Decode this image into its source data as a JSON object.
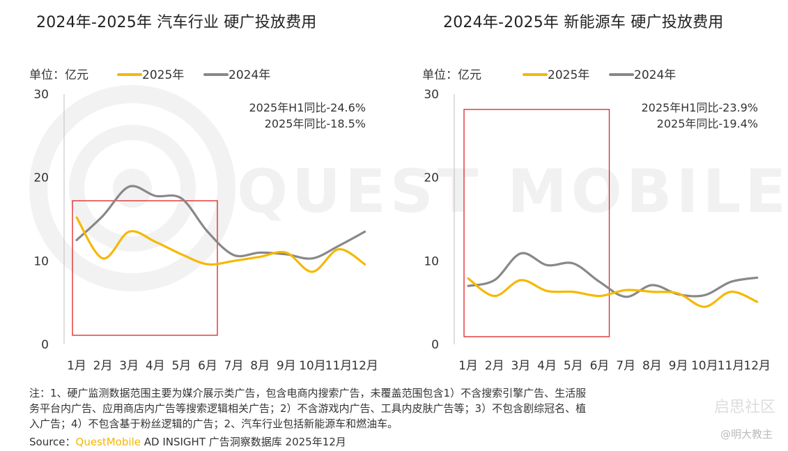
{
  "chart_data": [
    {
      "type": "line",
      "title": "2024年-2025年 汽车行业 硬广投放费用",
      "unit_label": "单位：亿元",
      "categories": [
        "1月",
        "2月",
        "3月",
        "4月",
        "5月",
        "6月",
        "7月",
        "8月",
        "9月",
        "10月",
        "11月",
        "12月"
      ],
      "series": [
        {
          "name": "2025年",
          "color": "#f5b800",
          "values": [
            15.2,
            10.3,
            13.5,
            12.3,
            10.8,
            9.6,
            10.0,
            10.5,
            11.0,
            8.7,
            11.4,
            9.6
          ]
        },
        {
          "name": "2024年",
          "color": "#888888",
          "values": [
            12.5,
            15.4,
            18.9,
            17.8,
            17.5,
            13.5,
            10.7,
            11.0,
            10.8,
            10.3,
            11.8,
            13.5
          ]
        }
      ],
      "ylim": [
        0,
        30
      ],
      "yticks": [
        0,
        10,
        20,
        30
      ],
      "annotations": [
        "2025年H1同比-24.6%",
        "2025年同比-18.5%"
      ],
      "highlight": {
        "from": "1月",
        "to": "6月"
      }
    },
    {
      "type": "line",
      "title": "2024年-2025年 新能源车 硬广投放费用",
      "unit_label": "单位：亿元",
      "categories": [
        "1月",
        "2月",
        "3月",
        "4月",
        "5月",
        "6月",
        "7月",
        "8月",
        "9月",
        "10月",
        "11月",
        "12月"
      ],
      "series": [
        {
          "name": "2025年",
          "color": "#f5b800",
          "values": [
            7.9,
            5.8,
            7.7,
            6.4,
            6.3,
            5.8,
            6.5,
            6.3,
            6.1,
            4.5,
            6.3,
            5.1
          ]
        },
        {
          "name": "2024年",
          "color": "#888888",
          "values": [
            7.0,
            7.7,
            10.9,
            9.5,
            9.7,
            7.5,
            5.7,
            7.1,
            6.0,
            5.9,
            7.5,
            8.0
          ]
        }
      ],
      "ylim": [
        0,
        30
      ],
      "yticks": [
        0,
        10,
        20,
        30
      ],
      "annotations": [
        "2025年H1同比-23.9%",
        "2025年同比-19.4%"
      ],
      "highlight": {
        "from": "1月",
        "to": "6月"
      }
    }
  ],
  "notes": [
    "注：1、硬广监测数据范围主要为媒介展示类广告，包含电商内搜索广告，未覆盖范围包含1）不含搜索引擎广告、生活服",
    "务平台内广告、应用商店内广告等搜索逻辑相关广告；2）不含游戏内广告、工具内皮肤广告等；3）不包含剧综冠名、植",
    "入广告；4）不包含基于粉丝逻辑的广告；2、汽车行业包括新能源车和燃油车。"
  ],
  "source": {
    "prefix": "Source：",
    "brand": "QuestMobile",
    "suffix": " AD INSIGHT 广告洞察数据库 2025年12月"
  },
  "watermark_text": "QUEST MOBILE",
  "corner_mark": "启思社区",
  "signature": "@明大教主",
  "colors": {
    "accent": "#f5b800",
    "secondary": "#888888",
    "highlight_box": "#e02020"
  }
}
